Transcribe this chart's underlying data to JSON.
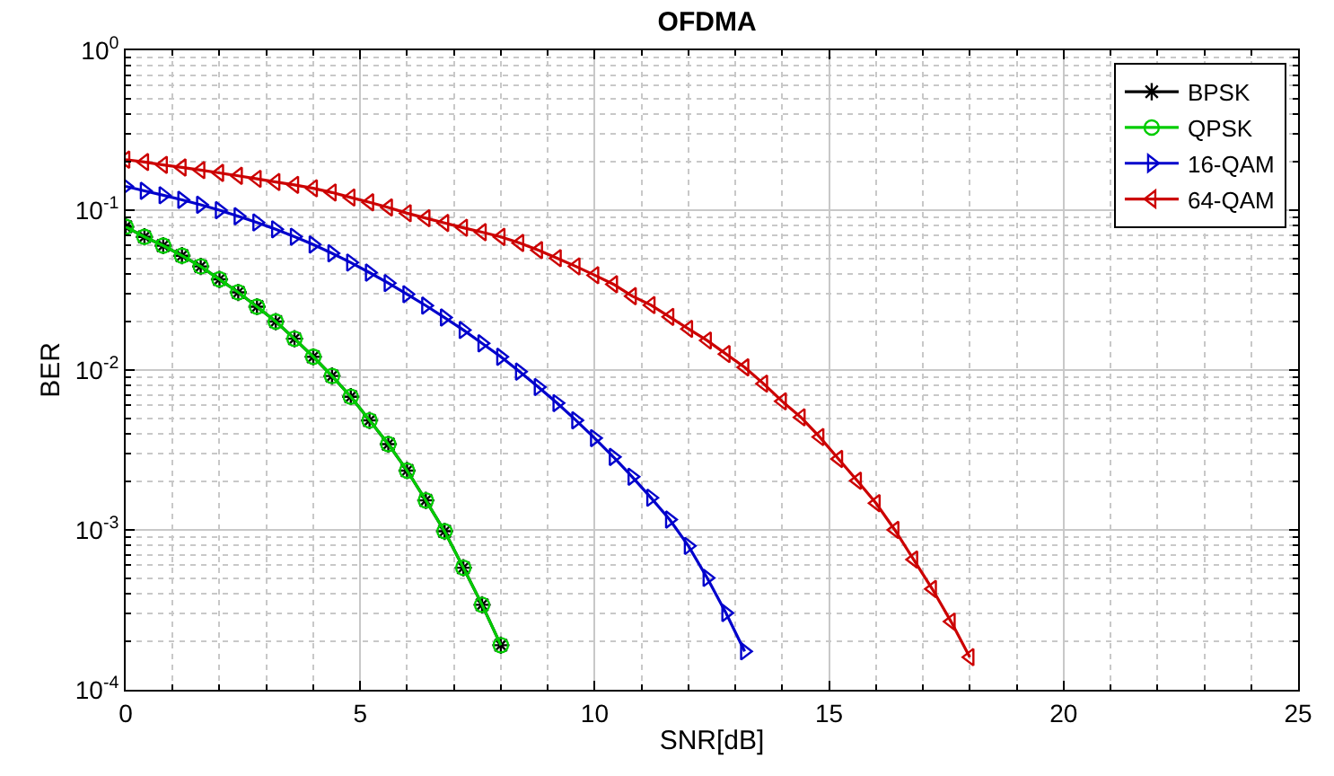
{
  "chart_data": {
    "type": "line",
    "title": "OFDMA",
    "xlabel": "SNR[dB]",
    "ylabel": "BER",
    "log": "y",
    "grid": true,
    "legend": "top right",
    "xlim": [
      0,
      25
    ],
    "xticks": [
      0,
      5,
      10,
      15,
      20,
      25
    ],
    "ylim": [
      0.0001,
      1
    ],
    "yticks": [
      {
        "value": 0.0001,
        "label": "10$^{-4}$"
      },
      {
        "value": 0.001,
        "label": "10$^{-3}$"
      },
      {
        "value": 0.01,
        "label": "10$^{-2}$"
      },
      {
        "value": 0.1,
        "label": "10$^{-1}$"
      },
      {
        "value": 1,
        "label": "10$^{0}$"
      }
    ],
    "series": [
      {
        "name": "BPSK",
        "color": "#000000",
        "marker": "cross",
        "x": [
          0,
          0.4,
          0.8,
          1.2,
          1.6,
          2.0,
          2.4,
          2.8,
          3.2,
          3.6,
          4.0,
          4.4,
          4.8,
          5.2,
          5.6,
          6.0,
          6.4,
          6.8,
          7.2,
          7.6,
          8.0
        ],
        "values": [
          0.0787,
          0.0681,
          0.06,
          0.0519,
          0.0445,
          0.0369,
          0.0306,
          0.0249,
          0.0201,
          0.0157,
          0.0121,
          0.00918,
          0.00681,
          0.00484,
          0.00344,
          0.00235,
          0.00153,
          0.00098,
          0.00058,
          0.00034,
          0.00019
        ]
      },
      {
        "name": "QPSK",
        "color": "#00cc00",
        "marker": "circle",
        "x": [
          0,
          0.4,
          0.8,
          1.2,
          1.6,
          2.0,
          2.4,
          2.8,
          3.2,
          3.6,
          4.0,
          4.4,
          4.8,
          5.2,
          5.6,
          6.0,
          6.4,
          6.8,
          7.2,
          7.6,
          8.0
        ],
        "values": [
          0.0787,
          0.0681,
          0.06,
          0.0519,
          0.0445,
          0.0369,
          0.0306,
          0.0249,
          0.0201,
          0.0157,
          0.0121,
          0.00918,
          0.00681,
          0.00484,
          0.00344,
          0.00235,
          0.00153,
          0.00098,
          0.00058,
          0.00034,
          0.00019
        ]
      },
      {
        "name": "16-QAM",
        "color": "#0000cc",
        "marker": "triangle",
        "x": [
          0,
          0.4,
          0.8,
          1.2,
          1.6,
          2.0,
          2.4,
          2.8,
          3.2,
          3.6,
          4.0,
          4.4,
          4.8,
          5.2,
          5.6,
          6.0,
          6.4,
          6.8,
          7.2,
          7.6,
          8.0,
          8.4,
          8.8,
          9.2,
          9.6,
          10.0,
          10.4,
          10.8,
          11.2,
          11.6,
          12.0,
          12.4,
          12.8,
          13.2
        ],
        "values": [
          0.141,
          0.132,
          0.124,
          0.116,
          0.108,
          0.1,
          0.0916,
          0.0838,
          0.0759,
          0.0682,
          0.061,
          0.0537,
          0.047,
          0.0407,
          0.035,
          0.0298,
          0.0253,
          0.0213,
          0.0178,
          0.0147,
          0.0121,
          0.00977,
          0.00783,
          0.00621,
          0.00485,
          0.00375,
          0.00286,
          0.00215,
          0.00159,
          0.00116,
          0.000794,
          0.000501,
          0.000302,
          0.000174
        ]
      },
      {
        "name": "64-QAM",
        "color": "#cc0000",
        "marker": "triangle",
        "x": [
          0,
          0.4,
          0.8,
          1.2,
          1.6,
          2.0,
          2.4,
          2.8,
          3.2,
          3.6,
          4.0,
          4.4,
          4.8,
          5.2,
          5.6,
          6.0,
          6.4,
          6.8,
          7.2,
          7.6,
          8.0,
          8.4,
          8.8,
          9.2,
          9.6,
          10.0,
          10.4,
          10.8,
          11.2,
          11.6,
          12.0,
          12.4,
          12.8,
          13.2,
          13.6,
          14.0,
          14.4,
          14.8,
          15.2,
          15.6,
          16.0,
          16.4,
          16.8,
          17.2,
          17.6,
          18.0
        ],
        "values": [
          0.207,
          0.2,
          0.192,
          0.185,
          0.178,
          0.171,
          0.164,
          0.157,
          0.15,
          0.144,
          0.137,
          0.129,
          0.12,
          0.112,
          0.104,
          0.0957,
          0.0891,
          0.0832,
          0.0776,
          0.0728,
          0.0681,
          0.0624,
          0.0562,
          0.0501,
          0.0445,
          0.0392,
          0.0344,
          0.029,
          0.0255,
          0.0215,
          0.0181,
          0.0153,
          0.0126,
          0.0104,
          0.00822,
          0.00637,
          0.00506,
          0.00381,
          0.00278,
          0.00203,
          0.00147,
          0.001,
          0.000653,
          0.000427,
          0.000267,
          0.00016
        ]
      }
    ]
  }
}
